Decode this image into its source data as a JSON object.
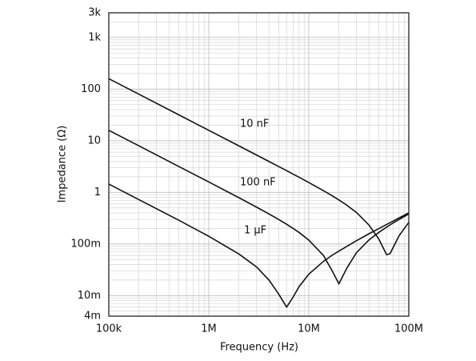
{
  "chart_data": {
    "type": "line",
    "x_label": "Frequency (Hz)",
    "y_label": "Impedance (Ω)",
    "log_x": true,
    "log_y": true,
    "grid": true,
    "minor_grid": true,
    "xlim": [
      100000,
      100000000
    ],
    "xticks": [
      {
        "value": 100000,
        "label": "100k"
      },
      {
        "value": 1000000,
        "label": "1M"
      },
      {
        "value": 10000000,
        "label": "10M"
      },
      {
        "value": 100000000,
        "label": "100M"
      }
    ],
    "ylim": [
      0.004,
      3000
    ],
    "yticks": [
      {
        "value": 3000,
        "label": "3k"
      },
      {
        "value": 1000,
        "label": "1k"
      },
      100,
      10,
      1,
      {
        "value": 0.1,
        "label": "100m"
      },
      {
        "value": 0.01,
        "label": "10m"
      },
      {
        "value": 0.004,
        "label": "4m"
      }
    ],
    "x": [
      100000,
      200000,
      500000,
      1000000,
      2000000,
      3000000,
      4000000,
      5000000,
      6000000,
      7000000,
      8000000,
      10000000,
      14000000,
      17000000,
      20000000,
      24000000,
      30000000,
      40000000,
      50000000,
      60000000,
      65000000,
      70000000,
      80000000,
      100000000
    ],
    "series": [
      {
        "name": "10 nF",
        "color": "#111111",
        "values": [
          159,
          79.6,
          31.8,
          15.9,
          7.95,
          5.29,
          3.96,
          3.16,
          2.63,
          2.24,
          1.96,
          1.55,
          1.08,
          0.866,
          0.713,
          0.564,
          0.407,
          0.232,
          0.126,
          0.062,
          0.065,
          0.087,
          0.145,
          0.262
        ]
      },
      {
        "name": "100 nF",
        "color": "#111111",
        "values": [
          15.9,
          7.96,
          3.18,
          1.59,
          0.788,
          0.518,
          0.382,
          0.298,
          0.241,
          0.199,
          0.167,
          0.119,
          0.06,
          0.031,
          0.017,
          0.034,
          0.068,
          0.12,
          0.167,
          0.212,
          0.234,
          0.256,
          0.298,
          0.382
        ]
      },
      {
        "name": "1 µF",
        "color": "#111111",
        "values": [
          1.45,
          0.723,
          0.289,
          0.141,
          0.064,
          0.036,
          0.02,
          0.0107,
          0.006,
          0.0095,
          0.015,
          0.026,
          0.046,
          0.06,
          0.073,
          0.09,
          0.116,
          0.158,
          0.198,
          0.239,
          0.259,
          0.279,
          0.32,
          0.401
        ]
      }
    ]
  }
}
